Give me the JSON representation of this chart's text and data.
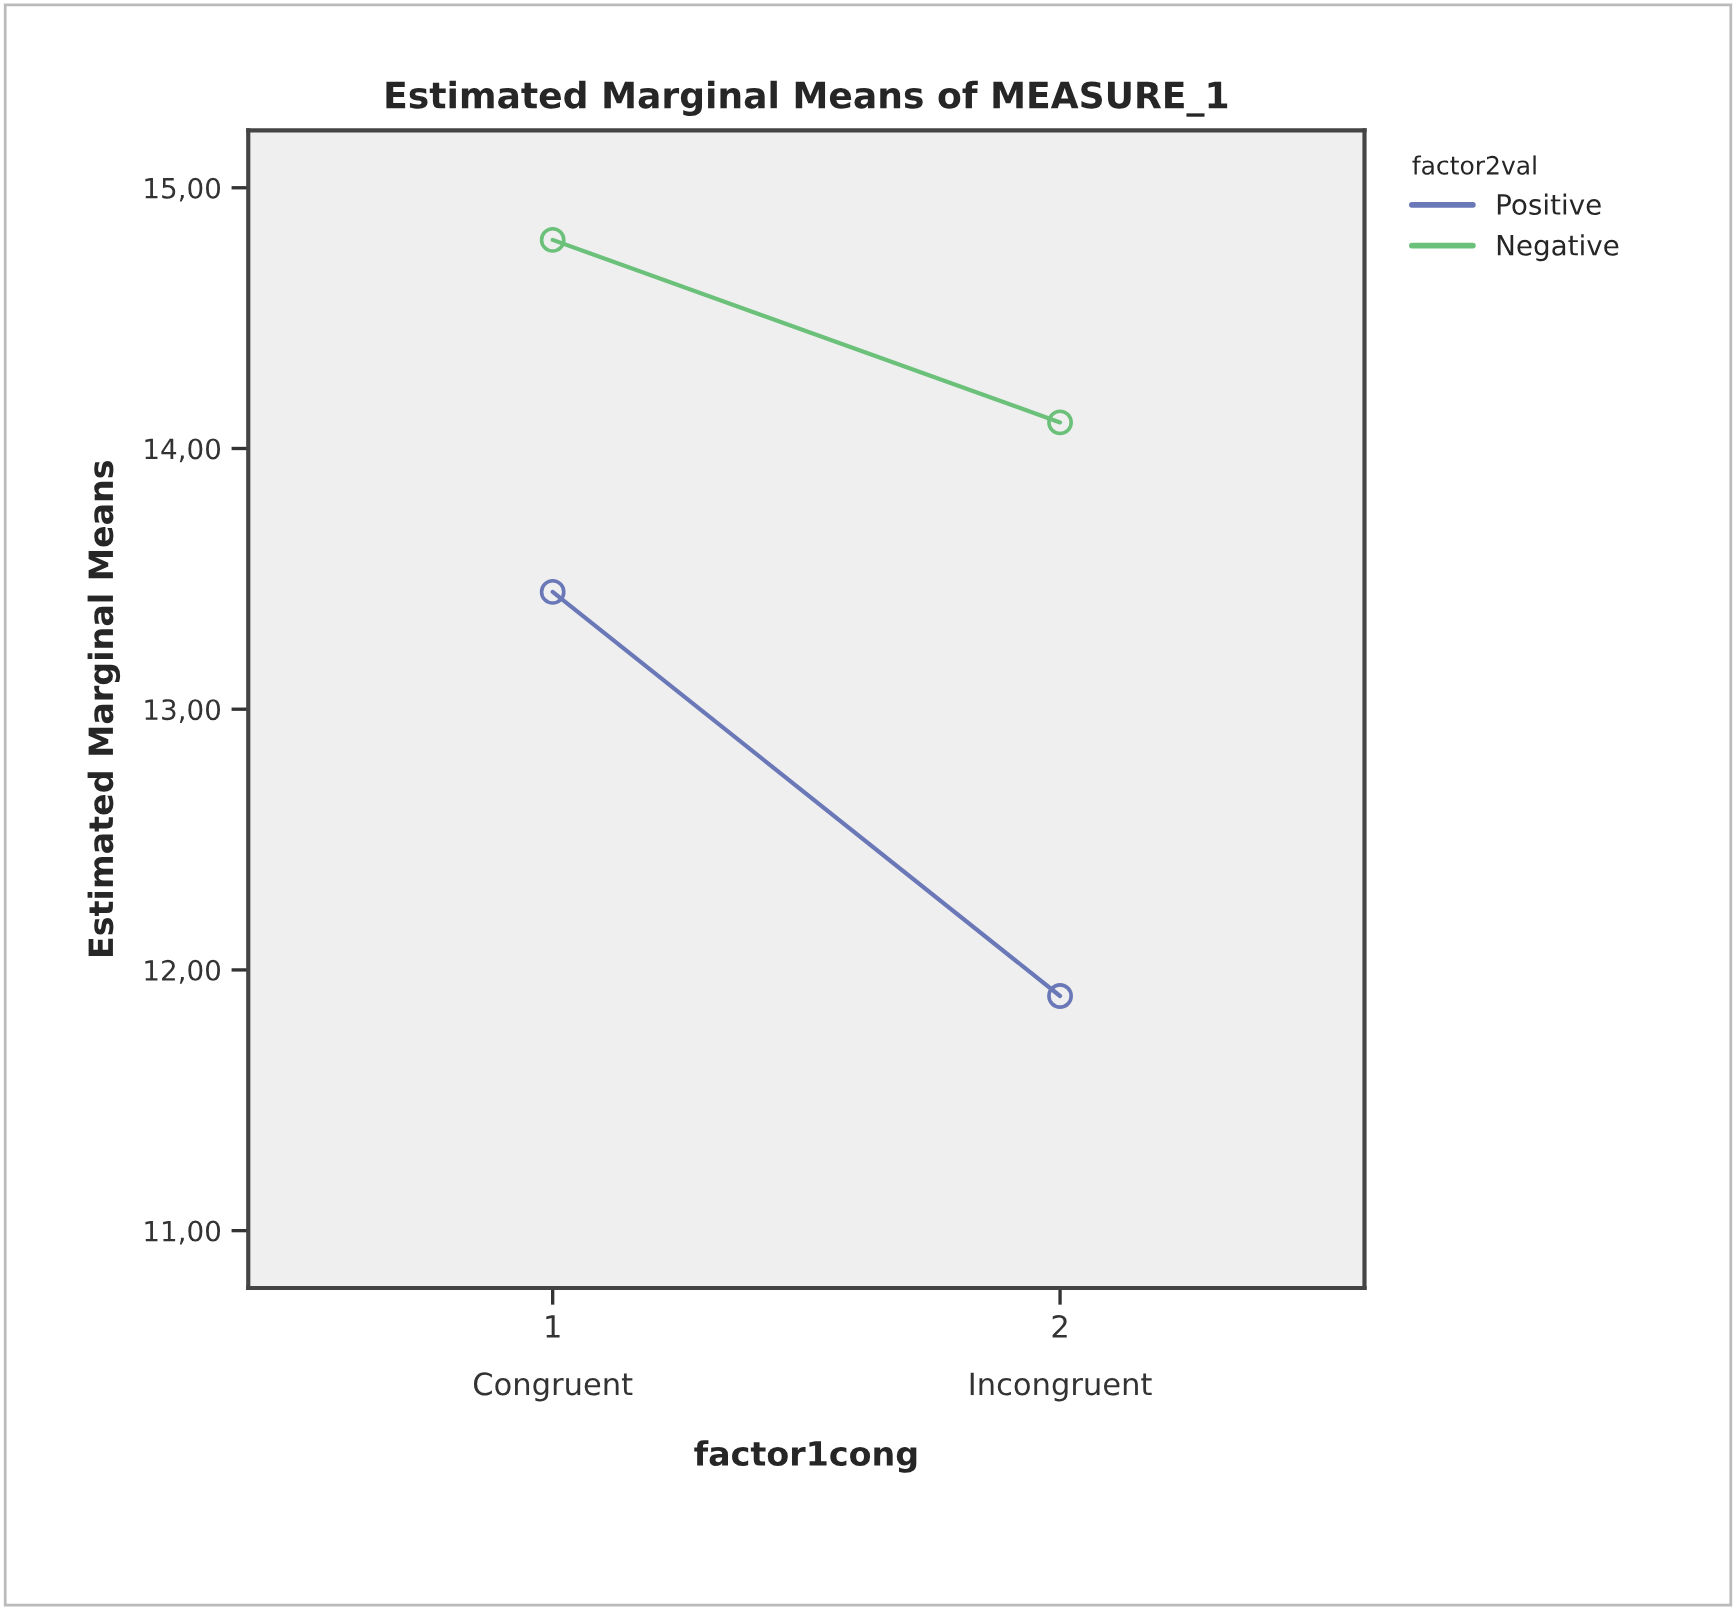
{
  "chart_data": {
    "type": "line",
    "title": "Estimated Marginal Means of MEASURE_1",
    "xlabel": "factor1cong",
    "ylabel": "Estimated Marginal Means",
    "legend_title": "factor2val",
    "categories": [
      "1\nCongruent",
      "2\nIncongruent"
    ],
    "series": [
      {
        "name": "Positive",
        "color": "#6a78b8",
        "values": [
          13.45,
          11.9
        ]
      },
      {
        "name": "Negative",
        "color": "#6cc17a",
        "values": [
          14.8,
          14.1
        ]
      }
    ],
    "ylim": [
      10.78,
      15.22
    ],
    "yticks": [
      {
        "value": 11,
        "label": "11,00"
      },
      {
        "value": 12,
        "label": "12,00"
      },
      {
        "value": 13,
        "label": "13,00"
      },
      {
        "value": 14,
        "label": "14,00"
      },
      {
        "value": 15,
        "label": "15,00"
      }
    ],
    "marker": "circle",
    "line_style": "solid",
    "grid": false,
    "legend": "top right"
  }
}
